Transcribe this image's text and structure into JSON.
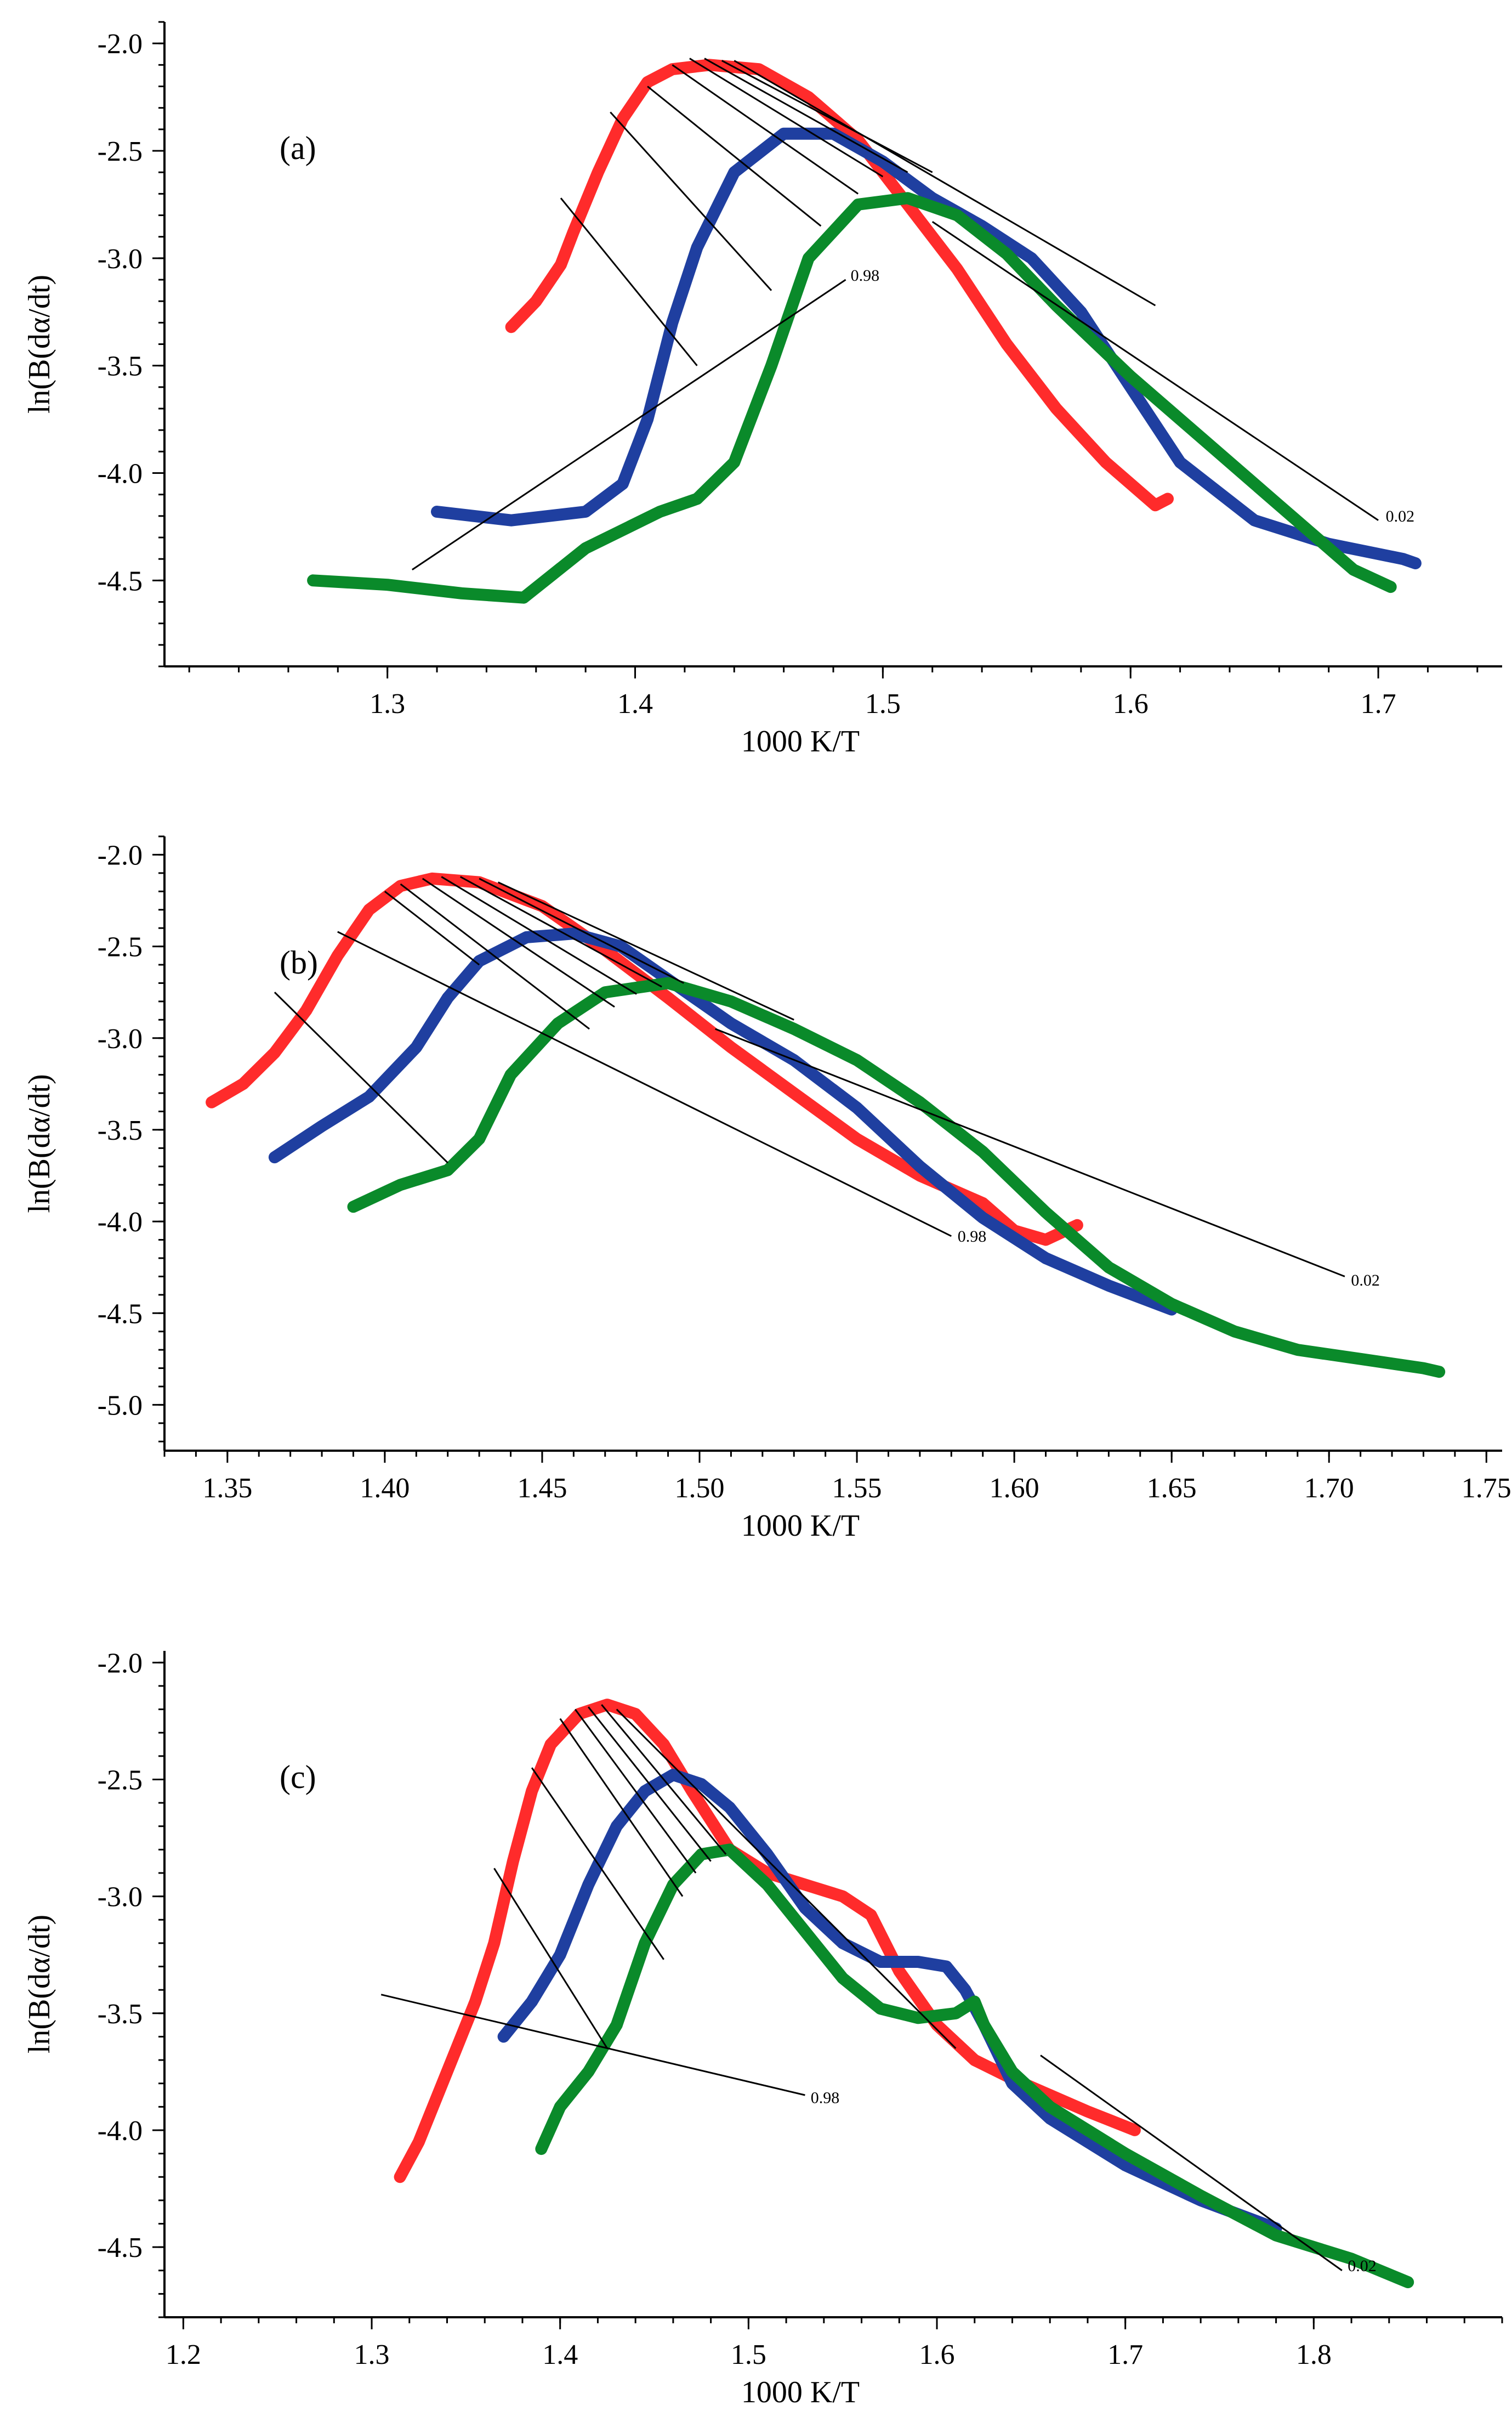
{
  "colors": {
    "red": "#ff2b2b",
    "blue": "#1f3fa0",
    "green": "#0a8a2a"
  },
  "chart_data": [
    {
      "type": "line",
      "panel_label": "(a)",
      "xlabel": "1000 K/T",
      "ylabel": "ln(B(dα/dt)",
      "xlim": [
        1.21,
        1.75
      ],
      "ylim": [
        -4.9,
        -1.9
      ],
      "xticks": [
        1.3,
        1.4,
        1.5,
        1.6,
        1.7
      ],
      "xtick_labels": [
        "1.3",
        "1.4",
        "1.5",
        "1.6",
        "1.7"
      ],
      "yticks": [
        -2.0,
        -2.5,
        -3.0,
        -3.5,
        -4.0,
        -4.5
      ],
      "ytick_labels": [
        "-2.0",
        "-2.5",
        "-3.0",
        "-3.5",
        "-4.0",
        "-4.5"
      ],
      "series": [
        {
          "name": "red",
          "color": "red",
          "x": [
            1.35,
            1.36,
            1.37,
            1.375,
            1.385,
            1.395,
            1.405,
            1.415,
            1.43,
            1.45,
            1.47,
            1.49,
            1.51,
            1.53,
            1.55,
            1.57,
            1.59,
            1.61,
            1.615
          ],
          "y": [
            -3.32,
            -3.2,
            -3.03,
            -2.88,
            -2.6,
            -2.35,
            -2.18,
            -2.12,
            -2.1,
            -2.12,
            -2.25,
            -2.45,
            -2.75,
            -3.05,
            -3.4,
            -3.7,
            -3.95,
            -4.15,
            -4.12
          ]
        },
        {
          "name": "blue",
          "color": "blue",
          "x": [
            1.32,
            1.35,
            1.38,
            1.395,
            1.405,
            1.415,
            1.425,
            1.44,
            1.46,
            1.48,
            1.5,
            1.52,
            1.54,
            1.56,
            1.58,
            1.6,
            1.62,
            1.65,
            1.68,
            1.71,
            1.715
          ],
          "y": [
            -4.18,
            -4.22,
            -4.18,
            -4.05,
            -3.75,
            -3.3,
            -2.95,
            -2.6,
            -2.42,
            -2.42,
            -2.55,
            -2.72,
            -2.85,
            -3.0,
            -3.25,
            -3.6,
            -3.95,
            -4.22,
            -4.33,
            -4.4,
            -4.42
          ]
        },
        {
          "name": "green",
          "color": "green",
          "x": [
            1.27,
            1.3,
            1.33,
            1.355,
            1.38,
            1.41,
            1.425,
            1.44,
            1.455,
            1.47,
            1.49,
            1.51,
            1.53,
            1.55,
            1.57,
            1.6,
            1.63,
            1.66,
            1.69,
            1.705
          ],
          "y": [
            -4.5,
            -4.52,
            -4.56,
            -4.58,
            -4.35,
            -4.18,
            -4.12,
            -3.95,
            -3.5,
            -3.0,
            -2.75,
            -2.72,
            -2.8,
            -2.98,
            -3.22,
            -3.55,
            -3.85,
            -4.15,
            -4.45,
            -4.53
          ]
        }
      ],
      "isoconversion_lines": [
        {
          "x": [
            1.31,
            1.485
          ],
          "y": [
            -4.45,
            -3.1
          ]
        },
        {
          "x": [
            1.37,
            1.425
          ],
          "y": [
            -2.72,
            -3.5
          ]
        },
        {
          "x": [
            1.39,
            1.455
          ],
          "y": [
            -2.32,
            -3.15
          ]
        },
        {
          "x": [
            1.405,
            1.475
          ],
          "y": [
            -2.2,
            -2.85
          ]
        },
        {
          "x": [
            1.415,
            1.49
          ],
          "y": [
            -2.1,
            -2.7
          ]
        },
        {
          "x": [
            1.422,
            1.5
          ],
          "y": [
            -2.07,
            -2.62
          ]
        },
        {
          "x": [
            1.428,
            1.51
          ],
          "y": [
            -2.07,
            -2.6
          ]
        },
        {
          "x": [
            1.435,
            1.52
          ],
          "y": [
            -2.08,
            -2.6
          ]
        },
        {
          "x": [
            1.44,
            1.61
          ],
          "y": [
            -2.08,
            -3.22
          ]
        },
        {
          "x": [
            1.52,
            1.7
          ],
          "y": [
            -2.83,
            -4.22
          ]
        }
      ],
      "annotations": [
        {
          "text": "0.98",
          "x": 1.487,
          "y": -3.08
        },
        {
          "text": "0.02",
          "x": 1.703,
          "y": -4.2
        }
      ]
    },
    {
      "type": "line",
      "panel_label": "(b)",
      "xlabel": "1000 K/T",
      "ylabel": "ln(B(dα/dt)",
      "xlim": [
        1.33,
        1.755
      ],
      "ylim": [
        -5.25,
        -1.9
      ],
      "xticks": [
        1.35,
        1.4,
        1.45,
        1.5,
        1.55,
        1.6,
        1.65,
        1.7,
        1.75
      ],
      "xtick_labels": [
        "1.35",
        "1.40",
        "1.45",
        "1.50",
        "1.55",
        "1.60",
        "1.65",
        "1.70",
        "1.75"
      ],
      "yticks": [
        -2.0,
        -2.5,
        -3.0,
        -3.5,
        -4.0,
        -4.5,
        -5.0
      ],
      "ytick_labels": [
        "-2.0",
        "-2.5",
        "-3.0",
        "-3.5",
        "-4.0",
        "-4.5",
        "-5.0"
      ],
      "series": [
        {
          "name": "red",
          "color": "red",
          "x": [
            1.345,
            1.355,
            1.365,
            1.375,
            1.385,
            1.395,
            1.405,
            1.415,
            1.43,
            1.45,
            1.47,
            1.49,
            1.51,
            1.53,
            1.55,
            1.57,
            1.59,
            1.6,
            1.61,
            1.62
          ],
          "y": [
            -3.35,
            -3.25,
            -3.08,
            -2.85,
            -2.55,
            -2.3,
            -2.17,
            -2.13,
            -2.15,
            -2.28,
            -2.52,
            -2.78,
            -3.05,
            -3.3,
            -3.55,
            -3.75,
            -3.9,
            -4.05,
            -4.1,
            -4.02
          ]
        },
        {
          "name": "blue",
          "color": "blue",
          "x": [
            1.365,
            1.38,
            1.395,
            1.41,
            1.42,
            1.43,
            1.445,
            1.46,
            1.475,
            1.49,
            1.51,
            1.53,
            1.55,
            1.57,
            1.59,
            1.61,
            1.63,
            1.65
          ],
          "y": [
            -3.65,
            -3.48,
            -3.32,
            -3.05,
            -2.78,
            -2.58,
            -2.45,
            -2.43,
            -2.5,
            -2.68,
            -2.92,
            -3.12,
            -3.38,
            -3.7,
            -3.98,
            -4.2,
            -4.35,
            -4.48
          ]
        },
        {
          "name": "green",
          "color": "green",
          "x": [
            1.39,
            1.405,
            1.42,
            1.43,
            1.44,
            1.455,
            1.47,
            1.49,
            1.51,
            1.53,
            1.55,
            1.57,
            1.59,
            1.61,
            1.63,
            1.65,
            1.67,
            1.69,
            1.71,
            1.73,
            1.735
          ],
          "y": [
            -3.92,
            -3.8,
            -3.72,
            -3.55,
            -3.2,
            -2.92,
            -2.75,
            -2.7,
            -2.8,
            -2.95,
            -3.12,
            -3.35,
            -3.62,
            -3.95,
            -4.25,
            -4.45,
            -4.6,
            -4.7,
            -4.75,
            -4.8,
            -4.82
          ]
        }
      ],
      "isoconversion_lines": [
        {
          "x": [
            1.365,
            1.42
          ],
          "y": [
            -2.75,
            -3.68
          ]
        },
        {
          "x": [
            1.385,
            1.58
          ],
          "y": [
            -2.42,
            -4.08
          ]
        },
        {
          "x": [
            1.4,
            1.43
          ],
          "y": [
            -2.2,
            -2.6
          ]
        },
        {
          "x": [
            1.405,
            1.465
          ],
          "y": [
            -2.16,
            -2.95
          ]
        },
        {
          "x": [
            1.412,
            1.473
          ],
          "y": [
            -2.13,
            -2.83
          ]
        },
        {
          "x": [
            1.418,
            1.48
          ],
          "y": [
            -2.12,
            -2.76
          ]
        },
        {
          "x": [
            1.424,
            1.488
          ],
          "y": [
            -2.12,
            -2.72
          ]
        },
        {
          "x": [
            1.43,
            1.495
          ],
          "y": [
            -2.13,
            -2.7
          ]
        },
        {
          "x": [
            1.436,
            1.53
          ],
          "y": [
            -2.15,
            -2.9
          ]
        },
        {
          "x": [
            1.505,
            1.705
          ],
          "y": [
            -2.95,
            -4.3
          ]
        }
      ],
      "annotations": [
        {
          "text": "0.98",
          "x": 1.582,
          "y": -4.08
        },
        {
          "text": "0.02",
          "x": 1.707,
          "y": -4.32
        }
      ]
    },
    {
      "type": "line",
      "panel_label": "(c)",
      "xlabel": "1000 K/T",
      "ylabel": "ln(B(dα/dt)",
      "xlim": [
        1.19,
        1.9
      ],
      "ylim": [
        -4.8,
        -1.95
      ],
      "xticks": [
        1.2,
        1.3,
        1.4,
        1.5,
        1.6,
        1.7,
        1.8
      ],
      "xtick_labels": [
        "1.2",
        "1.3",
        "1.4",
        "1.5",
        "1.6",
        "1.7",
        "1.8"
      ],
      "yticks": [
        -2.0,
        -2.5,
        -3.0,
        -3.5,
        -4.0,
        -4.5
      ],
      "ytick_labels": [
        "-2.0",
        "-2.5",
        "-3.0",
        "-3.5",
        "-4.0",
        "-4.5"
      ],
      "series": [
        {
          "name": "red",
          "color": "red",
          "x": [
            1.315,
            1.325,
            1.335,
            1.345,
            1.355,
            1.365,
            1.375,
            1.385,
            1.395,
            1.41,
            1.425,
            1.44,
            1.455,
            1.47,
            1.49,
            1.51,
            1.53,
            1.55,
            1.565,
            1.58,
            1.6,
            1.62,
            1.64,
            1.66,
            1.68,
            1.705
          ],
          "y": [
            -4.2,
            -4.05,
            -3.85,
            -3.65,
            -3.45,
            -3.2,
            -2.85,
            -2.55,
            -2.35,
            -2.22,
            -2.18,
            -2.22,
            -2.35,
            -2.55,
            -2.8,
            -2.9,
            -2.95,
            -3.0,
            -3.08,
            -3.32,
            -3.55,
            -3.7,
            -3.78,
            -3.85,
            -3.92,
            -4.0
          ]
        },
        {
          "name": "blue",
          "color": "blue",
          "x": [
            1.37,
            1.385,
            1.4,
            1.415,
            1.43,
            1.445,
            1.46,
            1.475,
            1.49,
            1.51,
            1.53,
            1.55,
            1.57,
            1.59,
            1.605,
            1.615,
            1.625,
            1.64,
            1.66,
            1.7,
            1.74,
            1.78
          ],
          "y": [
            -3.6,
            -3.45,
            -3.25,
            -2.95,
            -2.7,
            -2.55,
            -2.48,
            -2.52,
            -2.62,
            -2.82,
            -3.05,
            -3.2,
            -3.28,
            -3.28,
            -3.3,
            -3.4,
            -3.55,
            -3.8,
            -3.95,
            -4.15,
            -4.3,
            -4.42
          ]
        },
        {
          "name": "green",
          "color": "green",
          "x": [
            1.39,
            1.4,
            1.415,
            1.43,
            1.445,
            1.46,
            1.475,
            1.49,
            1.51,
            1.53,
            1.55,
            1.57,
            1.59,
            1.61,
            1.62,
            1.625,
            1.64,
            1.66,
            1.7,
            1.74,
            1.78,
            1.82,
            1.85
          ],
          "y": [
            -4.08,
            -3.9,
            -3.75,
            -3.55,
            -3.2,
            -2.95,
            -2.82,
            -2.8,
            -2.95,
            -3.15,
            -3.35,
            -3.48,
            -3.52,
            -3.5,
            -3.45,
            -3.55,
            -3.75,
            -3.9,
            -4.1,
            -4.28,
            -4.45,
            -4.55,
            -4.65
          ]
        }
      ],
      "isoconversion_lines": [
        {
          "x": [
            1.305,
            1.53
          ],
          "y": [
            -3.42,
            -3.85
          ]
        },
        {
          "x": [
            1.365,
            1.425
          ],
          "y": [
            -2.88,
            -3.65
          ]
        },
        {
          "x": [
            1.385,
            1.455
          ],
          "y": [
            -2.45,
            -3.27
          ]
        },
        {
          "x": [
            1.4,
            1.465
          ],
          "y": [
            -2.24,
            -3.0
          ]
        },
        {
          "x": [
            1.408,
            1.472
          ],
          "y": [
            -2.2,
            -2.9
          ]
        },
        {
          "x": [
            1.415,
            1.48
          ],
          "y": [
            -2.19,
            -2.85
          ]
        },
        {
          "x": [
            1.422,
            1.488
          ],
          "y": [
            -2.18,
            -2.82
          ]
        },
        {
          "x": [
            1.43,
            1.61
          ],
          "y": [
            -2.2,
            -3.65
          ]
        },
        {
          "x": [
            1.655,
            1.815
          ],
          "y": [
            -3.68,
            -4.6
          ]
        }
      ],
      "annotations": [
        {
          "text": "0.98",
          "x": 1.533,
          "y": -3.86
        },
        {
          "text": "0.02",
          "x": 1.818,
          "y": -4.58
        }
      ]
    }
  ]
}
